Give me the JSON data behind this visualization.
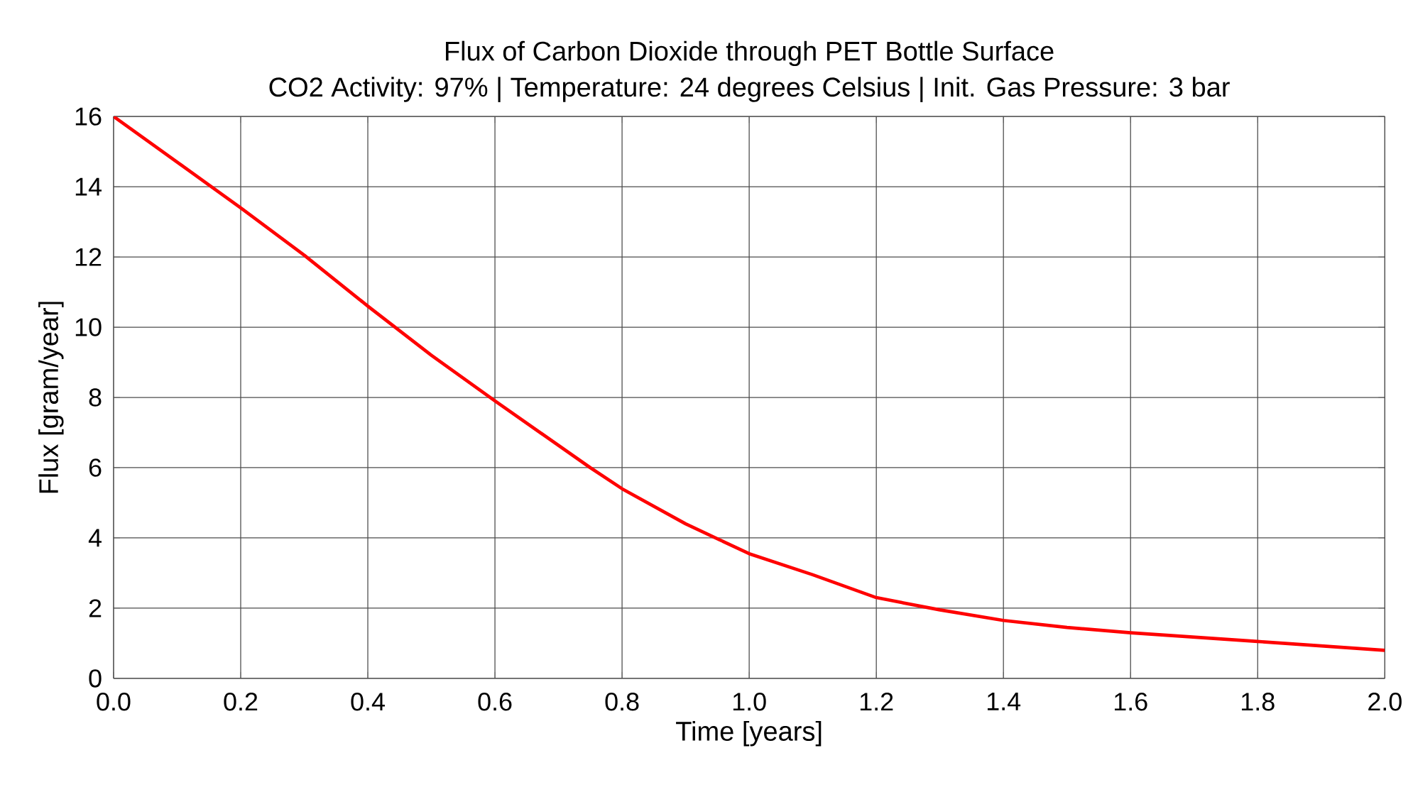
{
  "chart_data": {
    "type": "line",
    "title": "Flux of Carbon Dioxide through PET Bottle Surface",
    "subtitle": "CO2 Activity: 97% | Temperature: 24 degrees Celsius | Init. Gas Pressure: 3 bar",
    "xlabel": "Time [years]",
    "ylabel": "Flux [gram/year]",
    "x": [
      0,
      0.1,
      0.2,
      0.3,
      0.4,
      0.5,
      0.6,
      0.75,
      0.8,
      0.9,
      1.0,
      1.1,
      1.2,
      1.3,
      1.4,
      1.5,
      1.6,
      1.8,
      2.0
    ],
    "series": [
      {
        "color": "#ff0000",
        "values": [
          16,
          14.7,
          13.4,
          12.05,
          10.6,
          9.2,
          7.9,
          6.0,
          5.4,
          4.4,
          3.55,
          2.95,
          2.3,
          1.95,
          1.65,
          1.45,
          1.3,
          1.05,
          0.8
        ]
      }
    ],
    "xlim": [
      0,
      2
    ],
    "ylim": [
      0,
      16
    ],
    "xticks": [
      {
        "value": 0,
        "label": "0.0"
      },
      {
        "value": 0.2,
        "label": "0.2"
      },
      {
        "value": 0.4,
        "label": "0.4"
      },
      {
        "value": 0.6,
        "label": "0.6"
      },
      {
        "value": 0.8,
        "label": "0.8"
      },
      {
        "value": 1.0,
        "label": "1.0"
      },
      {
        "value": 1.2,
        "label": "1.2"
      },
      {
        "value": 1.4,
        "label": "1.4"
      },
      {
        "value": 1.6,
        "label": "1.6"
      },
      {
        "value": 1.8,
        "label": "1.8"
      },
      {
        "value": 2.0,
        "label": "2.0"
      }
    ],
    "yticks": [
      0,
      2,
      4,
      6,
      8,
      10,
      12,
      14,
      16
    ],
    "grid": true,
    "marker": "none",
    "line_style": "solid"
  }
}
